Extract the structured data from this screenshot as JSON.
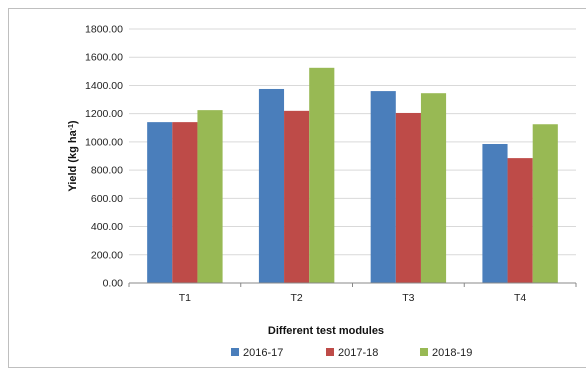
{
  "chart_data": {
    "type": "bar",
    "title": "",
    "xlabel": "Different test modules",
    "ylabel": "Yield (kg ha",
    "ylabel_sup": "-1",
    "ylabel_close": ")",
    "categories": [
      "T1",
      "T2",
      "T3",
      "T4"
    ],
    "series": [
      {
        "name": "2016-17",
        "color": "#4a7ebb",
        "values": [
          1140,
          1375,
          1360,
          985
        ]
      },
      {
        "name": "2017-18",
        "color": "#be4b48",
        "values": [
          1140,
          1220,
          1205,
          885
        ]
      },
      {
        "name": "2018-19",
        "color": "#98b954",
        "values": [
          1225,
          1525,
          1345,
          1125
        ]
      }
    ],
    "ylim": [
      0,
      1800
    ],
    "yticks": [
      "0.00",
      "200.00",
      "400.00",
      "600.00",
      "800.00",
      "1000.00",
      "1200.00",
      "1400.00",
      "1600.00",
      "1800.00"
    ],
    "grid": true,
    "legend": "bottom"
  }
}
